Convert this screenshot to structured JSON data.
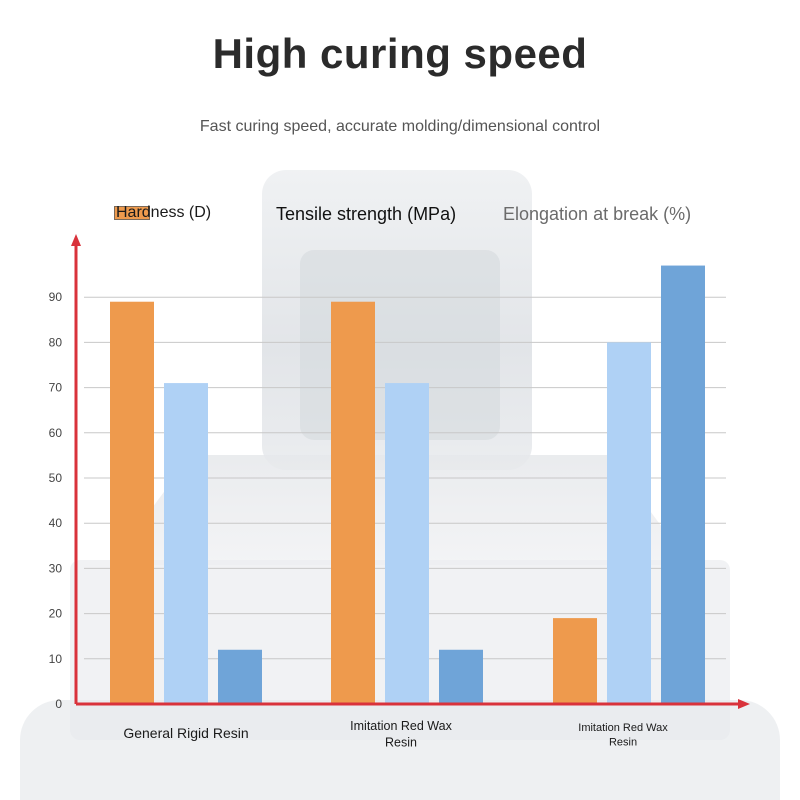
{
  "title": "High curing speed",
  "subtitle": "Fast curing speed, accurate molding/dimensional control",
  "colors": {
    "hardness": "#ee9a4d",
    "tensile": "#afd1f5",
    "elongation": "#6fa4d8",
    "axis": "#d9323b",
    "grid": "#c8c8c8"
  },
  "chart_data": {
    "type": "bar",
    "title": "",
    "xlabel": "",
    "ylabel": "",
    "ylim": [
      0,
      100
    ],
    "yticks": [
      0,
      10,
      20,
      30,
      40,
      50,
      60,
      70,
      80,
      90
    ],
    "grid": true,
    "legend_position": "top",
    "categories": [
      "General Rigid Resin",
      "Imitation Red Wax Resin",
      "Imitation Red Wax Resin"
    ],
    "series": [
      {
        "name": "Hardness (D)",
        "values": [
          89,
          89,
          19
        ]
      },
      {
        "name": "Tensile strength (MPa)",
        "values": [
          71,
          71,
          80
        ]
      },
      {
        "name": "Elongation at break (%)",
        "values": [
          12,
          12,
          97
        ]
      }
    ]
  }
}
